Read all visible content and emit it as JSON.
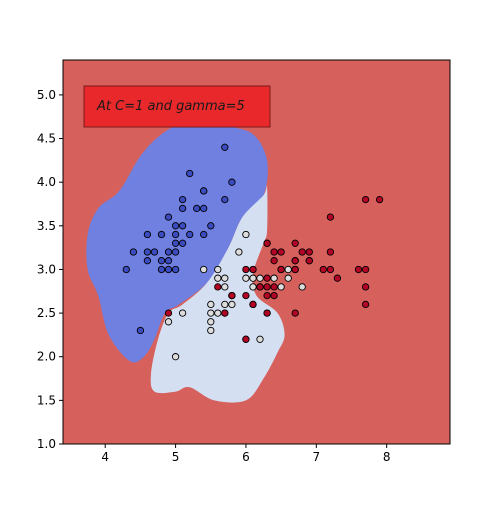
{
  "chart_data": {
    "type": "scatter",
    "title": "",
    "xlabel": "",
    "ylabel": "",
    "xlim": [
      3.4,
      8.9
    ],
    "ylim": [
      1.0,
      5.4
    ],
    "x_ticks": [
      "4",
      "5",
      "6",
      "7",
      "8"
    ],
    "y_ticks": [
      "1.0",
      "1.5",
      "2.0",
      "2.5",
      "3.0",
      "3.5",
      "4.0",
      "4.5",
      "5.0"
    ],
    "grid": false,
    "annotation": "At C=1 and gamma=5",
    "annotation_box_color": "#e8282a",
    "background_region_color": "#d5605c",
    "regions": [
      {
        "class": 0,
        "color": "#7080e0",
        "outline": [
          [
            5.7,
            4.65
          ],
          [
            6.1,
            4.55
          ],
          [
            6.3,
            4.25
          ],
          [
            6.25,
            3.85
          ],
          [
            5.95,
            3.6
          ],
          [
            5.75,
            3.25
          ],
          [
            5.45,
            2.85
          ],
          [
            5.05,
            2.6
          ],
          [
            4.85,
            2.5
          ],
          [
            4.7,
            2.2
          ],
          [
            4.55,
            2.0
          ],
          [
            4.35,
            1.95
          ],
          [
            4.05,
            2.25
          ],
          [
            3.9,
            2.7
          ],
          [
            3.75,
            3.0
          ],
          [
            3.75,
            3.4
          ],
          [
            3.9,
            3.7
          ],
          [
            4.2,
            3.9
          ],
          [
            4.5,
            4.3
          ],
          [
            4.8,
            4.55
          ],
          [
            5.15,
            4.7
          ],
          [
            5.45,
            4.72
          ]
        ]
      },
      {
        "class": 1,
        "color": "#d5dff2",
        "outline": [
          [
            6.3,
            3.95
          ],
          [
            6.3,
            3.45
          ],
          [
            6.25,
            3.3
          ],
          [
            6.1,
            2.95
          ],
          [
            6.15,
            2.7
          ],
          [
            6.45,
            2.5
          ],
          [
            6.55,
            2.25
          ],
          [
            6.45,
            2.05
          ],
          [
            6.25,
            1.75
          ],
          [
            6.0,
            1.5
          ],
          [
            5.55,
            1.5
          ],
          [
            5.2,
            1.65
          ],
          [
            5.0,
            1.6
          ],
          [
            4.7,
            1.6
          ],
          [
            4.65,
            1.8
          ],
          [
            4.75,
            2.2
          ],
          [
            4.9,
            2.5
          ],
          [
            5.1,
            2.6
          ],
          [
            5.45,
            2.85
          ],
          [
            5.75,
            3.25
          ],
          [
            5.95,
            3.6
          ],
          [
            6.25,
            3.85
          ]
        ]
      }
    ],
    "series": [
      {
        "class": 0,
        "color": "#3b4cc0",
        "points": [
          [
            5.7,
            4.4
          ],
          [
            5.8,
            4.0
          ],
          [
            5.2,
            4.1
          ],
          [
            5.1,
            3.8
          ],
          [
            5.4,
            3.9
          ],
          [
            5.1,
            3.7
          ],
          [
            5.3,
            3.7
          ],
          [
            5.4,
            3.7
          ],
          [
            4.9,
            3.6
          ],
          [
            5.1,
            3.5
          ],
          [
            5.0,
            3.5
          ],
          [
            5.0,
            3.4
          ],
          [
            5.2,
            3.4
          ],
          [
            5.4,
            3.4
          ],
          [
            4.6,
            3.4
          ],
          [
            4.8,
            3.4
          ],
          [
            5.1,
            3.3
          ],
          [
            5.0,
            3.3
          ],
          [
            5.0,
            3.2
          ],
          [
            4.9,
            3.2
          ],
          [
            4.4,
            3.2
          ],
          [
            4.6,
            3.2
          ],
          [
            4.7,
            3.2
          ],
          [
            4.8,
            3.1
          ],
          [
            4.9,
            3.1
          ],
          [
            4.6,
            3.1
          ],
          [
            4.8,
            3.0
          ],
          [
            4.9,
            3.0
          ],
          [
            4.3,
            3.0
          ],
          [
            5.0,
            3.0
          ],
          [
            5.5,
            3.5
          ],
          [
            5.7,
            3.8
          ],
          [
            5.4,
            3.9
          ],
          [
            4.5,
            2.3
          ]
        ]
      },
      {
        "class": 1,
        "color": "#dddddd",
        "points": [
          [
            6.0,
            3.4
          ],
          [
            5.9,
            3.2
          ],
          [
            6.3,
            3.3
          ],
          [
            5.4,
            3.0
          ],
          [
            5.6,
            3.0
          ],
          [
            5.6,
            2.9
          ],
          [
            5.7,
            2.9
          ],
          [
            5.7,
            2.8
          ],
          [
            5.8,
            2.7
          ],
          [
            5.8,
            2.6
          ],
          [
            5.5,
            2.6
          ],
          [
            5.6,
            2.5
          ],
          [
            5.5,
            2.5
          ],
          [
            5.5,
            2.4
          ],
          [
            5.5,
            2.3
          ],
          [
            5.7,
            2.5
          ],
          [
            6.1,
            3.0
          ],
          [
            6.1,
            2.9
          ],
          [
            6.2,
            2.9
          ],
          [
            6.1,
            2.8
          ],
          [
            6.3,
            2.5
          ],
          [
            6.0,
            2.2
          ],
          [
            6.2,
            2.2
          ],
          [
            5.0,
            2.0
          ],
          [
            4.9,
            2.4
          ],
          [
            5.1,
            2.5
          ],
          [
            6.7,
            3.0
          ],
          [
            6.6,
            3.0
          ],
          [
            6.4,
            2.9
          ],
          [
            6.6,
            2.9
          ],
          [
            6.7,
            3.1
          ],
          [
            6.8,
            2.8
          ],
          [
            6.5,
            2.8
          ],
          [
            5.8,
            2.7
          ],
          [
            6.0,
            2.9
          ],
          [
            5.7,
            2.6
          ]
        ]
      },
      {
        "class": 2,
        "color": "#b40426",
        "points": [
          [
            7.7,
            3.8
          ],
          [
            7.9,
            3.8
          ],
          [
            7.2,
            3.6
          ],
          [
            7.2,
            3.2
          ],
          [
            6.8,
            3.2
          ],
          [
            6.4,
            3.2
          ],
          [
            6.5,
            3.2
          ],
          [
            6.9,
            3.2
          ],
          [
            6.7,
            3.3
          ],
          [
            6.3,
            3.3
          ],
          [
            6.4,
            3.1
          ],
          [
            6.7,
            3.1
          ],
          [
            6.9,
            3.1
          ],
          [
            6.5,
            3.0
          ],
          [
            7.1,
            3.0
          ],
          [
            7.2,
            3.0
          ],
          [
            7.6,
            3.0
          ],
          [
            7.7,
            3.0
          ],
          [
            6.0,
            3.0
          ],
          [
            6.1,
            3.0
          ],
          [
            6.9,
            3.1
          ],
          [
            7.3,
            2.9
          ],
          [
            6.3,
            2.9
          ],
          [
            6.4,
            2.8
          ],
          [
            6.2,
            2.8
          ],
          [
            6.3,
            2.7
          ],
          [
            6.4,
            2.7
          ],
          [
            6.5,
            3.0
          ],
          [
            7.7,
            2.8
          ],
          [
            7.7,
            2.6
          ],
          [
            6.1,
            2.6
          ],
          [
            6.3,
            2.5
          ],
          [
            6.7,
            2.5
          ],
          [
            5.8,
            2.7
          ],
          [
            5.6,
            2.8
          ],
          [
            6.0,
            2.7
          ],
          [
            5.7,
            2.5
          ],
          [
            4.9,
            2.5
          ],
          [
            6.0,
            2.2
          ],
          [
            6.2,
            2.8
          ],
          [
            6.7,
            3.0
          ],
          [
            6.3,
            2.8
          ],
          [
            6.1,
            2.6
          ]
        ]
      }
    ]
  }
}
